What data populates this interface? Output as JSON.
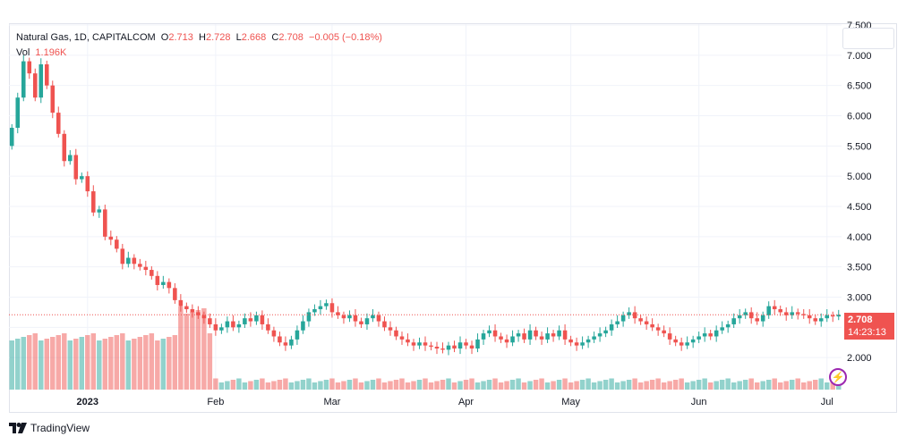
{
  "legend": {
    "symbol": "Natural Gas, 1D, CAPITALCOM",
    "o_label": "O",
    "o_value": "2.713",
    "h_label": "H",
    "h_value": "2.728",
    "l_label": "L",
    "l_value": "2.668",
    "c_label": "C",
    "c_value": "2.708",
    "change": "−0.005 (−0.18%)",
    "vol_label": "Vol",
    "vol_value": "1.196K"
  },
  "price_label": {
    "price": "2.708",
    "countdown": "14:23:13"
  },
  "brand": "TradingView",
  "colors": {
    "up": "#26a69a",
    "down": "#ef5350",
    "grid": "#f0f3fa",
    "axis_text": "#131722"
  },
  "icons": {
    "logo": "tradingview-logo-icon",
    "alert": "lightning-icon"
  },
  "chart_data": {
    "type": "candlestick",
    "title": "Natural Gas, 1D, CAPITALCOM",
    "ylim": [
      1.5,
      7.5
    ],
    "y_ticks": [
      "2.000",
      "2.500",
      "3.000",
      "3.500",
      "4.000",
      "4.500",
      "5.000",
      "5.500",
      "6.000",
      "6.500",
      "7.000",
      "7.500"
    ],
    "x_ticks": [
      {
        "label": "2023",
        "index": 13
      },
      {
        "label": "Feb",
        "index": 35
      },
      {
        "label": "Mar",
        "index": 55
      },
      {
        "label": "Apr",
        "index": 78
      },
      {
        "label": "May",
        "index": 96
      },
      {
        "label": "Jun",
        "index": 118
      },
      {
        "label": "Jul",
        "index": 140
      }
    ],
    "last_price": 2.708,
    "closes": [
      5.8,
      6.3,
      6.9,
      6.7,
      6.3,
      6.85,
      6.5,
      6.05,
      5.7,
      5.25,
      5.35,
      4.95,
      5.0,
      4.75,
      4.4,
      4.45,
      4.0,
      3.95,
      3.8,
      3.55,
      3.65,
      3.55,
      3.5,
      3.45,
      3.35,
      3.2,
      3.25,
      3.15,
      2.95,
      2.85,
      2.8,
      2.75,
      2.7,
      2.65,
      2.55,
      2.45,
      2.5,
      2.6,
      2.5,
      2.55,
      2.65,
      2.6,
      2.7,
      2.55,
      2.45,
      2.35,
      2.25,
      2.2,
      2.3,
      2.45,
      2.6,
      2.75,
      2.8,
      2.85,
      2.9,
      2.75,
      2.7,
      2.65,
      2.7,
      2.6,
      2.55,
      2.65,
      2.7,
      2.6,
      2.5,
      2.45,
      2.35,
      2.3,
      2.25,
      2.2,
      2.25,
      2.2,
      2.18,
      2.15,
      2.13,
      2.2,
      2.15,
      2.25,
      2.2,
      2.15,
      2.3,
      2.4,
      2.45,
      2.35,
      2.3,
      2.25,
      2.35,
      2.4,
      2.3,
      2.45,
      2.35,
      2.3,
      2.4,
      2.35,
      2.45,
      2.3,
      2.25,
      2.2,
      2.25,
      2.3,
      2.35,
      2.4,
      2.45,
      2.55,
      2.6,
      2.7,
      2.75,
      2.65,
      2.6,
      2.55,
      2.5,
      2.45,
      2.4,
      2.3,
      2.25,
      2.2,
      2.25,
      2.3,
      2.35,
      2.4,
      2.35,
      2.45,
      2.5,
      2.55,
      2.65,
      2.7,
      2.75,
      2.65,
      2.6,
      2.7,
      2.85,
      2.8,
      2.75,
      2.7,
      2.75,
      2.72,
      2.7,
      2.65,
      2.6,
      2.65,
      2.7,
      2.68,
      2.708
    ],
    "volume_label": "Vol",
    "volume_last": "1.196K"
  }
}
